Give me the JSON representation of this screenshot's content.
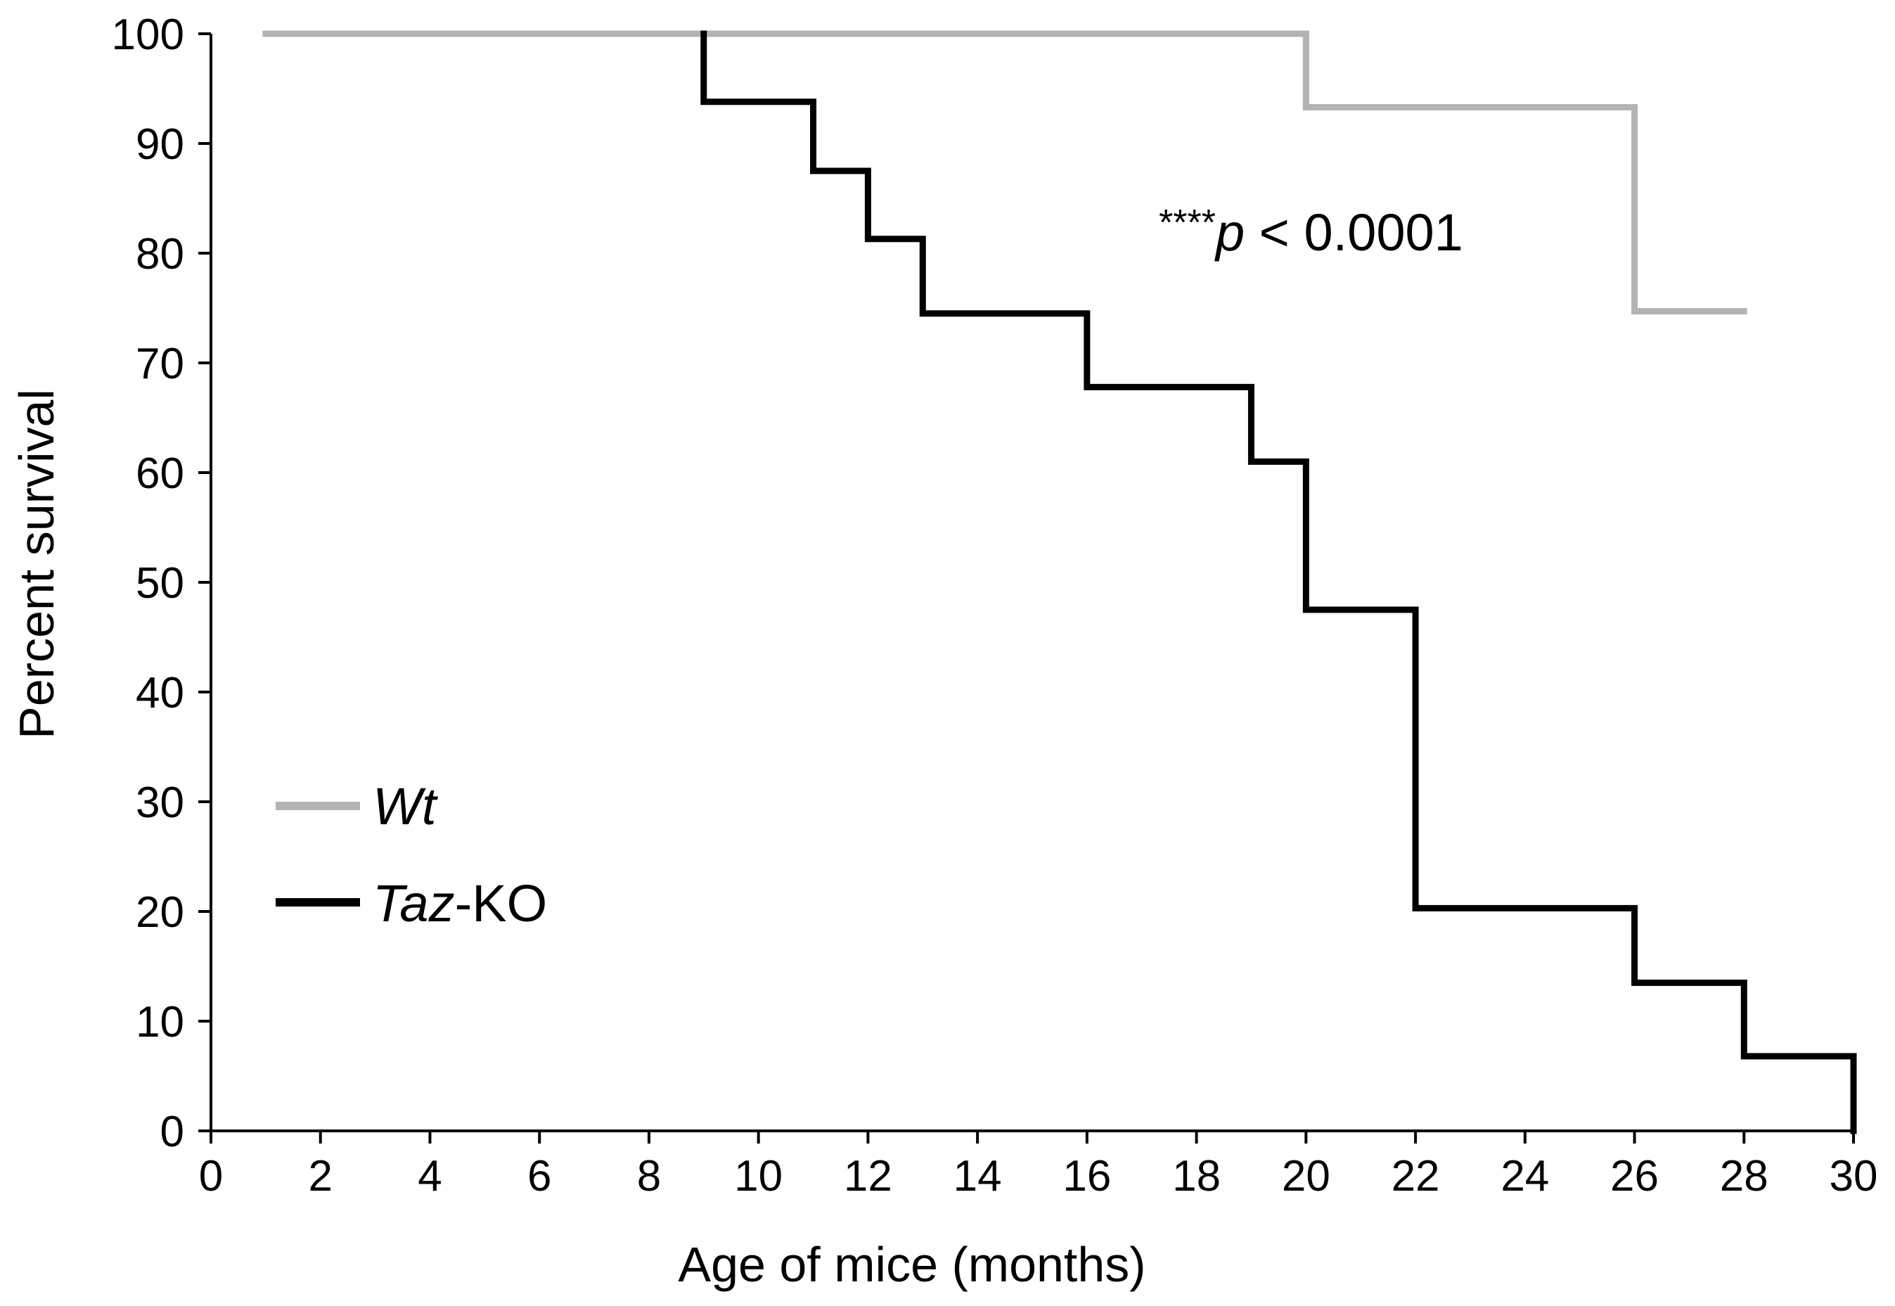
{
  "chart_data": {
    "type": "line",
    "subtype": "kaplan-meier step",
    "xlabel": "Age of mice (months)",
    "ylabel": "Percent survival",
    "xlim": [
      0,
      30
    ],
    "ylim": [
      0,
      100
    ],
    "xticks": [
      "0",
      "2",
      "4",
      "6",
      "8",
      "10",
      "12",
      "14",
      "16",
      "18",
      "20",
      "22",
      "24",
      "26",
      "28",
      "30"
    ],
    "yticks": [
      "0",
      "10",
      "20",
      "30",
      "40",
      "50",
      "60",
      "70",
      "80",
      "90",
      "100"
    ],
    "grid": false,
    "legend_position": "bottom-left",
    "annotation": {
      "stars": "****",
      "p": "p",
      "comparison": " < 0.0001"
    },
    "series": [
      {
        "name": "Wt",
        "name_italic": "Wt",
        "name_plain": "",
        "color": "#b3b3b3",
        "x": [
          1,
          20,
          26,
          28
        ],
        "values": [
          100,
          93.3,
          74.7,
          74.7
        ]
      },
      {
        "name": "Taz-KO",
        "name_italic": "Taz",
        "name_plain": "-KO",
        "color": "#000000",
        "x": [
          9,
          9,
          11,
          12,
          13,
          16,
          19,
          20,
          22,
          26,
          28,
          30
        ],
        "values": [
          100,
          93.8,
          87.5,
          81.3,
          74.5,
          67.8,
          61,
          47.5,
          20.3,
          13.5,
          6.8,
          0
        ]
      }
    ]
  }
}
